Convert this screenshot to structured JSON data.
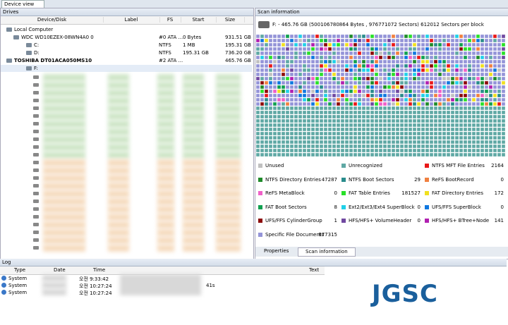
{
  "tab": "Device view",
  "drives": {
    "title": "Drives",
    "columns": [
      "Device/Disk",
      "Label",
      "FS",
      "Start",
      "Size"
    ],
    "rows": [
      {
        "name": "Local Computer"
      },
      {
        "name": "WDC WD10EZEX-08WN4A0 0",
        "fs": "#0 ATA ...",
        "start": "0 Bytes",
        "size": "931.51 GB"
      },
      {
        "name": "C:",
        "fs": "NTFS",
        "start": "1 MB",
        "size": "195.31 GB"
      },
      {
        "name": "D:",
        "fs": "NTFS",
        "start": "195.31 GB",
        "size": "736.20 GB"
      },
      {
        "name": "TOSHIBA DT01ACA050MS10",
        "fs": "#2 ATA ...",
        "size": "465.76 GB"
      },
      {
        "name": "F:"
      }
    ]
  },
  "scan": {
    "title": "Scan information",
    "header": "F: - 465.76 GB (500106780864 Bytes , 976771072 Sectors) 612012 Sectors per block",
    "legend": [
      {
        "label": "Unused",
        "color": "#c0c0c0"
      },
      {
        "label": "Unrecognized",
        "color": "#5fa8a4"
      },
      {
        "label": "NTFS MFT File Entries",
        "count": "2164",
        "color": "#e81818"
      },
      {
        "label": "NTFS Directory Entries",
        "count": "47287",
        "color": "#1f8a2a"
      },
      {
        "label": "NTFS Boot Sectors",
        "count": "29",
        "color": "#2a8c8c"
      },
      {
        "label": "ReFS BootRecord",
        "count": "0",
        "color": "#f08040"
      },
      {
        "label": "ReFS MetaBlock",
        "count": "0",
        "color": "#f060c8"
      },
      {
        "label": "FAT Table Entries",
        "count": "181527",
        "color": "#28e028"
      },
      {
        "label": "FAT Directory Entries",
        "count": "172",
        "color": "#f0e020"
      },
      {
        "label": "FAT Boot Sectors",
        "count": "8",
        "color": "#10a050"
      },
      {
        "label": "Ext2/Ext3/Ext4 SuperBlock",
        "count": "0",
        "color": "#20d0e8"
      },
      {
        "label": "UFS/FFS SuperBlock",
        "count": "0",
        "color": "#1078e0"
      },
      {
        "label": "UFS/FFS CylinderGroup",
        "count": "1",
        "color": "#8c0a0a"
      },
      {
        "label": "HFS/HFS+ VolumeHeader",
        "count": "0",
        "color": "#7048a0"
      },
      {
        "label": "HFS/HFS+ BTree+Node",
        "count": "141",
        "color": "#b020b0"
      },
      {
        "label": "Specific File Documents",
        "count": "877315",
        "color": "#9494d8"
      }
    ],
    "tabs": [
      "Properties",
      "Scan information"
    ]
  },
  "log": {
    "title": "Log",
    "columns": [
      "Type",
      "Date",
      "Time",
      "Text"
    ],
    "rows": [
      {
        "type": "System",
        "time": "오전 9:33:42"
      },
      {
        "type": "System",
        "time": "오전 10:27:24",
        "text": "41s"
      },
      {
        "type": "System",
        "time": "오전 10:27:24"
      }
    ]
  },
  "logo": "JGSC"
}
